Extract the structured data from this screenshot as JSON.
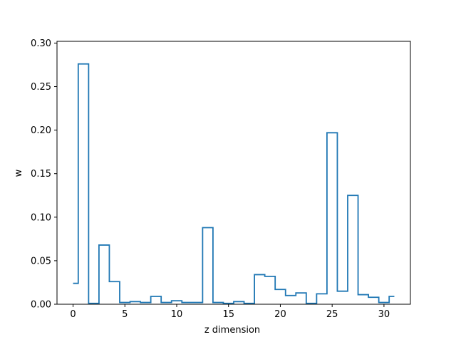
{
  "chart_data": {
    "type": "line",
    "style": "step-mid",
    "title": "",
    "xlabel": "z dimension",
    "ylabel": "w",
    "xlim": [
      -1.55,
      32.55
    ],
    "ylim": [
      0.0,
      0.302
    ],
    "xticks": [
      0,
      5,
      10,
      15,
      20,
      25,
      30
    ],
    "yticks": [
      0.0,
      0.05,
      0.1,
      0.15,
      0.2,
      0.25,
      0.3
    ],
    "ytick_labels": [
      "0.00",
      "0.05",
      "0.10",
      "0.15",
      "0.20",
      "0.25",
      "0.30"
    ],
    "grid": false,
    "line_color": "#1f77b4",
    "series": [
      {
        "x": [
          0,
          1,
          2,
          3,
          4,
          5,
          6,
          7,
          8,
          9,
          10,
          11,
          12,
          13,
          14,
          15,
          16,
          17,
          18,
          19,
          20,
          21,
          22,
          23,
          24,
          25,
          26,
          27,
          28,
          29,
          30,
          31
        ],
        "values": [
          0.024,
          0.276,
          0.001,
          0.068,
          0.026,
          0.002,
          0.003,
          0.002,
          0.009,
          0.002,
          0.004,
          0.002,
          0.002,
          0.088,
          0.002,
          0.001,
          0.003,
          0.001,
          0.034,
          0.032,
          0.017,
          0.01,
          0.013,
          0.001,
          0.012,
          0.197,
          0.015,
          0.125,
          0.011,
          0.008,
          0.002,
          0.009
        ]
      }
    ]
  }
}
